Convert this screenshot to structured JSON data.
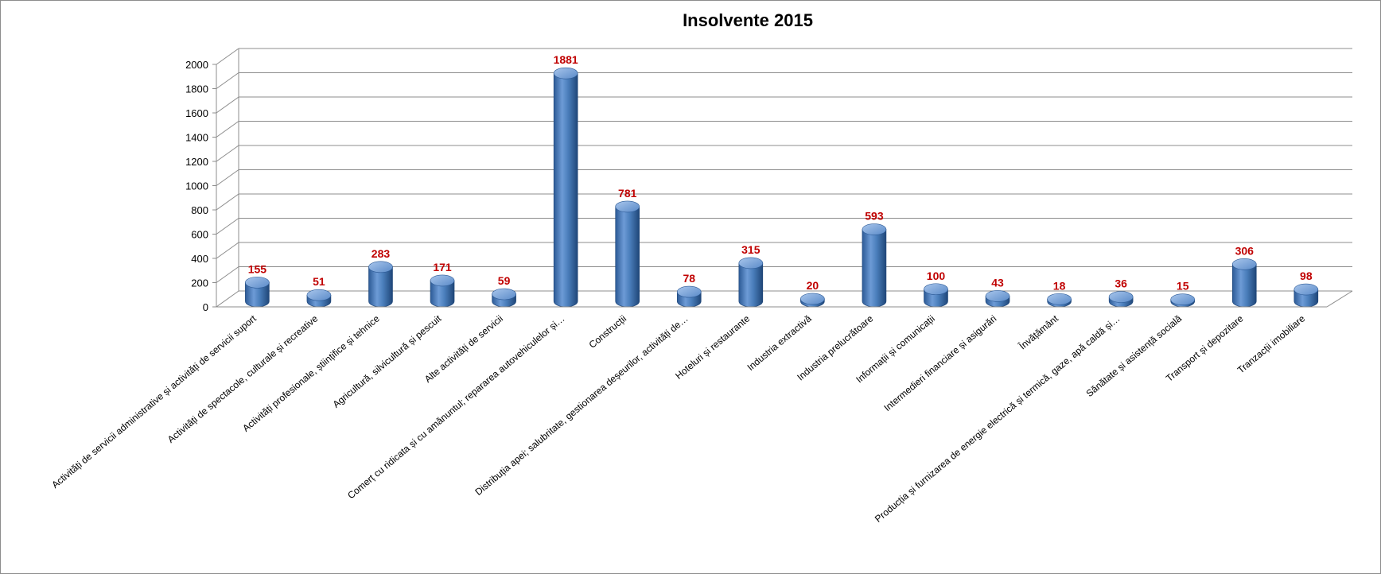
{
  "chart_data": {
    "type": "bar",
    "title": "Insolvente 2015",
    "xlabel": "",
    "ylabel": "",
    "ylim": [
      0,
      2000
    ],
    "yticks": [
      "0",
      "200",
      "400",
      "600",
      "800",
      "1000",
      "1200",
      "1400",
      "1600",
      "1800",
      "2000"
    ],
    "grid": true,
    "legend": "none",
    "bar_color": "#4a7ebb",
    "label_color": "#c00000",
    "categories": [
      "Activități de servicii administrative și activități de servicii suport",
      "Activități de spectacole, culturale și recreative",
      "Activități profesionale, științifice și tehnice",
      "Agricultură, silvicultură și pescuit",
      "Alte activități de servicii",
      "Comerț cu ridicata și cu amănuntul; repararea autovehiculelor și…",
      "Construcții",
      "Distribuția apei; salubritate, gestionarea deșeurilor, activități de…",
      "Hoteluri și restaurante",
      "Industria extractivă",
      "Industria prelucrătoare",
      "Informații și comunicații",
      "Intermedieri financiare și asigurări",
      "Învățământ",
      "Producția și furnizarea de energie electrică și termică, gaze, apă caldă și…",
      "Sănătate și asistență socială",
      "Transport și depozitare",
      "Tranzacții imobiliare"
    ],
    "values": [
      155,
      51,
      283,
      171,
      59,
      1881,
      781,
      78,
      315,
      20,
      593,
      100,
      43,
      18,
      36,
      15,
      306,
      98
    ],
    "value_labels": [
      "155",
      "51",
      "283",
      "171",
      "59",
      "1881",
      "781",
      "78",
      "315",
      "20",
      "593",
      "100",
      "43",
      "18",
      "36",
      "15",
      "306",
      "98"
    ]
  }
}
